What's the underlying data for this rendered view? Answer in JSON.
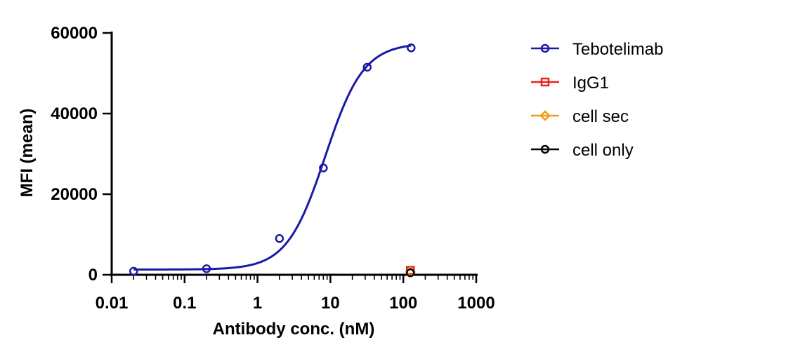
{
  "chart_data": {
    "type": "scatter",
    "xlabel": "Antibody conc. (nM)",
    "ylabel": "MFI (mean)",
    "xscale": "log",
    "xlim": [
      0.01,
      1000
    ],
    "ylim": [
      0,
      60000
    ],
    "x_ticks": [
      "0.01",
      "0.1",
      "1",
      "10",
      "100",
      "1000"
    ],
    "y_ticks": [
      "0",
      "20000",
      "40000",
      "60000"
    ],
    "legend_position": "right",
    "grid": false,
    "series": [
      {
        "name": "Tebotelimab",
        "color": "#1a1aa6",
        "marker": "circle",
        "fit_curve": true,
        "fit": {
          "bottom": 1300,
          "top": 57500,
          "ec50": 8.5,
          "hill": 1.65
        },
        "points": [
          {
            "x": 0.02,
            "y": 900
          },
          {
            "x": 0.2,
            "y": 1500
          },
          {
            "x": 2,
            "y": 9000
          },
          {
            "x": 8,
            "y": 26500
          },
          {
            "x": 32,
            "y": 51500
          },
          {
            "x": 128,
            "y": 56300
          }
        ]
      },
      {
        "name": "IgG1",
        "color": "#e8231f",
        "marker": "square",
        "fit_curve": false,
        "points": [
          {
            "x": 125,
            "y": 1100
          }
        ]
      },
      {
        "name": "cell sec",
        "color": "#f29a1e",
        "marker": "diamond",
        "fit_curve": false,
        "points": [
          {
            "x": 125,
            "y": 700
          }
        ]
      },
      {
        "name": "cell only",
        "color": "#000000",
        "marker": "circle",
        "fit_curve": false,
        "points": [
          {
            "x": 125,
            "y": 500
          }
        ]
      }
    ]
  }
}
